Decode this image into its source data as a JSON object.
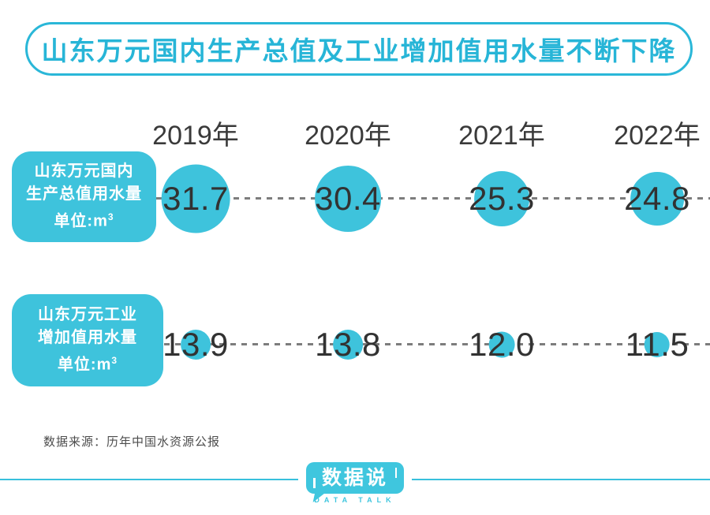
{
  "title": "山东万元国内生产总值及工业增加值用水量不断下降",
  "years": [
    "2019年",
    "2020年",
    "2021年",
    "2022年"
  ],
  "rows": [
    {
      "label_line1": "山东万元国内",
      "label_line2": "生产总值用水量",
      "unit_prefix": "单位:m",
      "unit_sup": "3",
      "values": [
        "31.7",
        "30.4",
        "25.3",
        "24.8"
      ]
    },
    {
      "label_line1": "山东万元工业",
      "label_line2": "增加值用水量",
      "unit_prefix": "单位:m",
      "unit_sup": "3",
      "values": [
        "13.9",
        "13.8",
        "12.0",
        "11.5"
      ]
    }
  ],
  "chart_data": {
    "type": "scatter",
    "subtype": "proportional-bubble-rows",
    "title": "山东万元国内生产总值及工业增加值用水量不断下降",
    "categories": [
      "2019年",
      "2020年",
      "2021年",
      "2022年"
    ],
    "series": [
      {
        "name": "山东万元国内生产总值用水量",
        "unit": "m³",
        "values": [
          31.7,
          30.4,
          25.3,
          24.8
        ]
      },
      {
        "name": "山东万元工业增加值用水量",
        "unit": "m³",
        "values": [
          13.9,
          13.8,
          12.0,
          11.5
        ]
      }
    ],
    "legend_position": "left",
    "grid": false,
    "notes": "bubble diameter proportional to value; dashed gray connector line per row"
  },
  "source": "数据来源：历年中国水资源公报",
  "logo": {
    "name": "数据说",
    "subtitle": "DATA TALK"
  },
  "colors": {
    "accent_cyan": "#3ec3dc",
    "title_cyan": "#27b5d7",
    "logo_cyan": "#3fc6de",
    "dash_gray": "#7d7d7d",
    "number_dark": "#323232"
  }
}
